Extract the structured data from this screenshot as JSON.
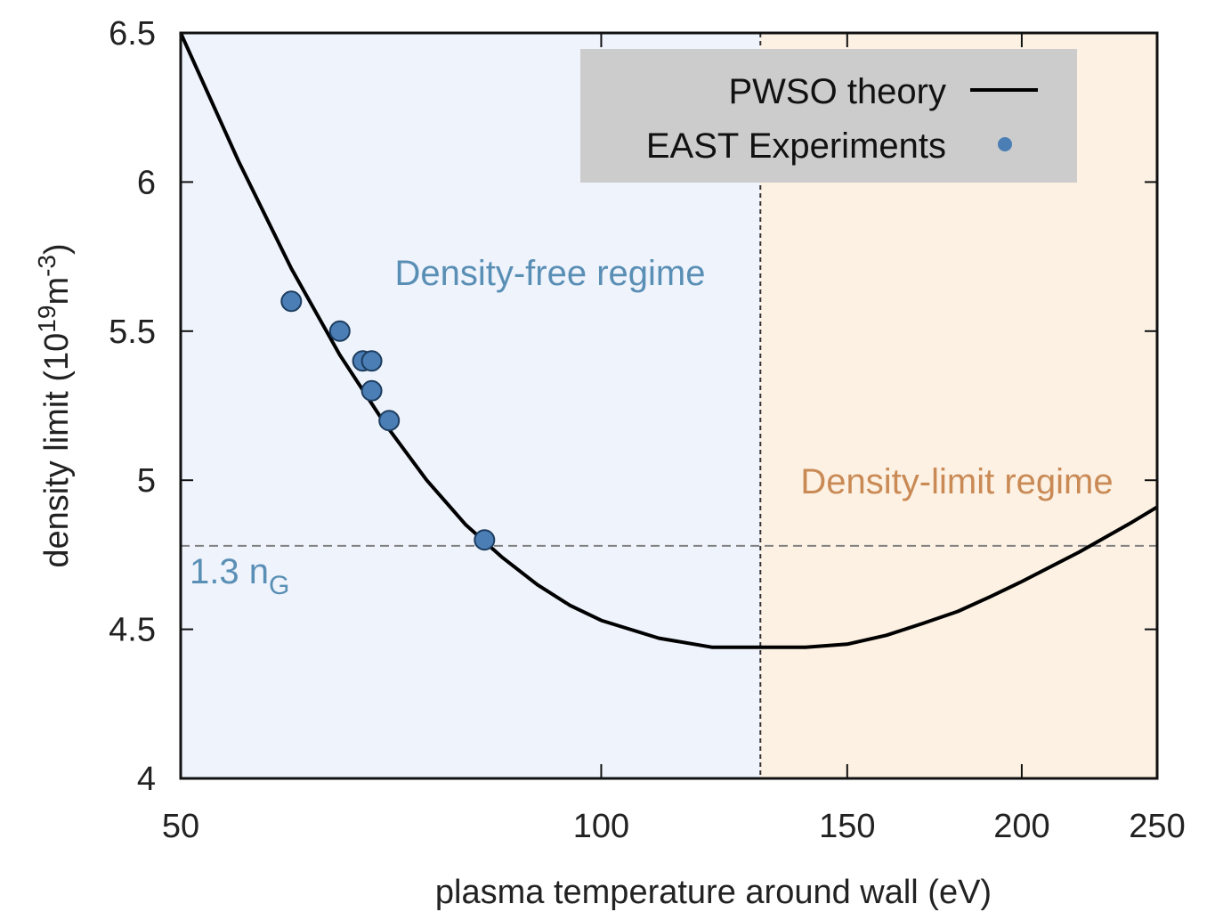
{
  "chart_data": {
    "type": "line",
    "xlabel": "plasma temperature around wall (eV)",
    "ylabel_main": "density limit (10",
    "ylabel_sup1": "19",
    "ylabel_mid": "m",
    "ylabel_sup2": "-3",
    "ylabel_end": ")",
    "xscale": "log",
    "xlim": [
      50,
      250
    ],
    "ylim": [
      4,
      6.5
    ],
    "xticks": [
      50,
      100,
      150,
      200,
      250
    ],
    "yticks": [
      4,
      4.5,
      5,
      5.5,
      6,
      6.5
    ],
    "series": [
      {
        "name": "PWSO theory",
        "kind": "line",
        "color": "#000000",
        "x": [
          50,
          55,
          60,
          65,
          70,
          75,
          80,
          85,
          90,
          95,
          100,
          110,
          120,
          130,
          140,
          150,
          160,
          170,
          180,
          190,
          200,
          220,
          240,
          250
        ],
        "y": [
          6.5,
          6.07,
          5.71,
          5.42,
          5.19,
          5.0,
          4.85,
          4.74,
          4.65,
          4.58,
          4.53,
          4.47,
          4.44,
          4.44,
          4.44,
          4.45,
          4.48,
          4.52,
          4.56,
          4.61,
          4.66,
          4.76,
          4.86,
          4.91
        ]
      },
      {
        "name": "EAST Experiments",
        "kind": "scatter",
        "color": "#4a7eb5",
        "x": [
          60,
          65,
          67.5,
          68.5,
          68.5,
          70.5,
          82.5
        ],
        "y": [
          5.6,
          5.5,
          5.4,
          5.4,
          5.3,
          5.2,
          4.8
        ]
      }
    ],
    "vline_x": 130,
    "hline_y": 4.78,
    "hline_label_main": "1.3 n",
    "hline_label_sub": "G",
    "regions": [
      {
        "label": "Density-free regime",
        "color": "#5a8fb5",
        "fill": "#eef3fc"
      },
      {
        "label": "Density-limit regime",
        "color": "#c98a55",
        "fill": "#fcf1e3"
      }
    ],
    "legend_position": "top-right",
    "legend_background": "#cccccc",
    "grid": false
  }
}
